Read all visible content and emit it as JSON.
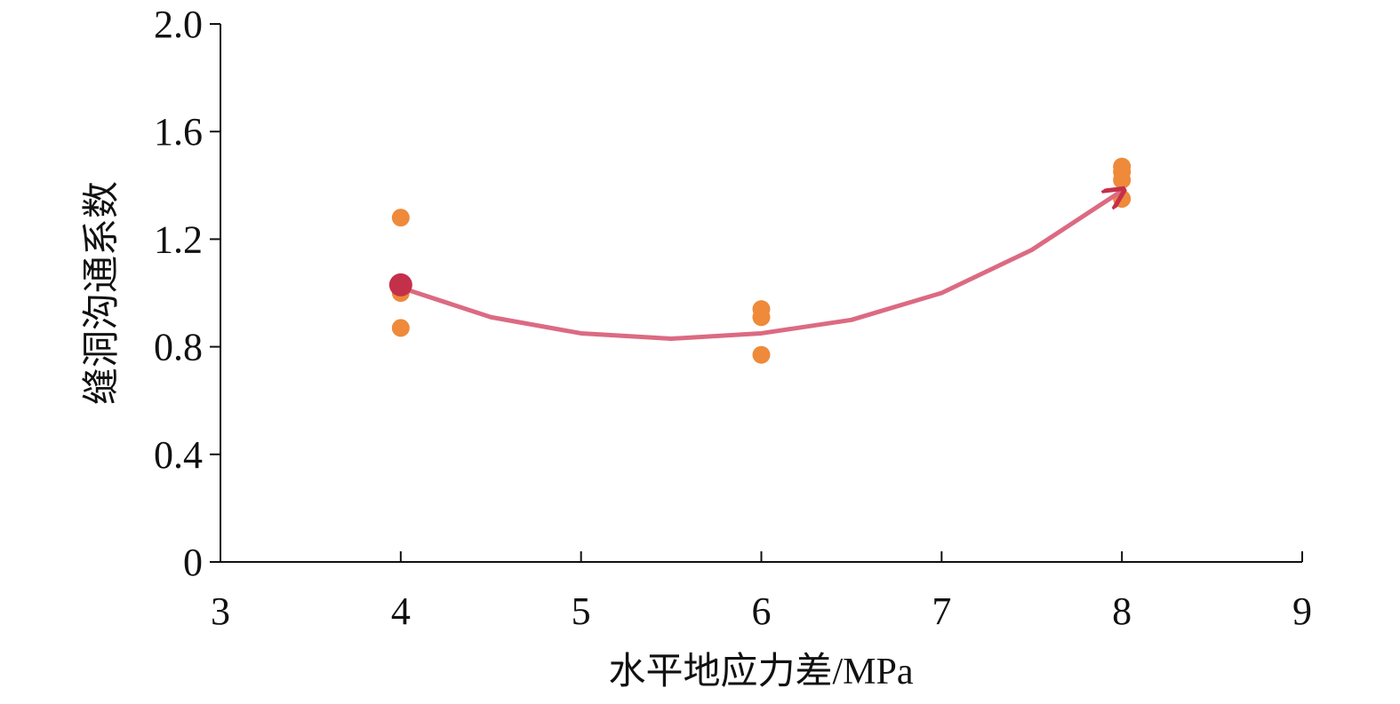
{
  "chart_data": {
    "type": "scatter",
    "x_label": "水平地应力差/MPa",
    "y_label": "缝洞沟通系数",
    "xlim": [
      3,
      9
    ],
    "xticks": [
      3,
      4,
      5,
      6,
      7,
      8,
      9
    ],
    "ylim": [
      0,
      2
    ],
    "yticks": [
      0,
      0.4,
      0.8,
      1.2,
      1.6,
      {
        "value": 2,
        "label": "2.0"
      }
    ],
    "points": {
      "color": "#ee8a3a",
      "x": [
        4,
        4,
        4,
        6,
        6,
        6,
        8,
        8,
        8,
        8
      ],
      "values": [
        1.28,
        1.0,
        0.87,
        0.94,
        0.91,
        0.77,
        1.47,
        1.45,
        1.42,
        1.35
      ]
    },
    "highlight": {
      "color": "#c4304a",
      "x": 4,
      "value": 1.03
    },
    "trend": {
      "color": "#dc6a82",
      "x": [
        4,
        4.5,
        5,
        5.5,
        6,
        6.5,
        7,
        7.5,
        8
      ],
      "values": [
        1.02,
        0.91,
        0.85,
        0.83,
        0.85,
        0.9,
        1.0,
        1.16,
        1.38
      ]
    }
  }
}
